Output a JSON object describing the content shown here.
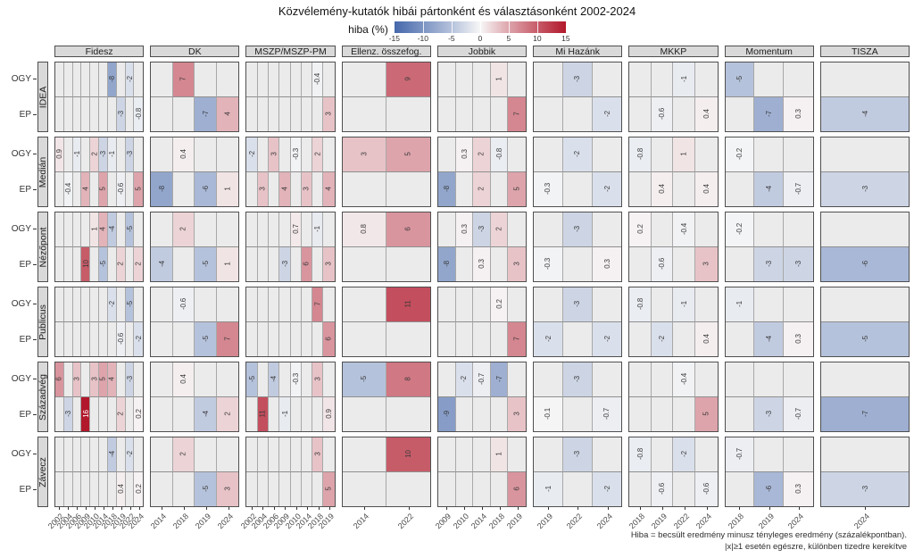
{
  "chart_data": {
    "type": "heatmap",
    "title": "Közvélemény-kutatók hibái pártonként és választásonként 2002-2024",
    "legend": {
      "label": "hiba (%)",
      "min": -15,
      "max": 15,
      "ticks": [
        -15,
        -10,
        -5,
        0,
        5,
        10,
        15
      ]
    },
    "row_groups": [
      "IDEA",
      "Medián",
      "Nézőpont",
      "Publicus",
      "Századvég",
      "Závecz"
    ],
    "row_types": [
      "OGY",
      "EP"
    ],
    "col_groups": [
      {
        "party": "Fidesz",
        "years": [
          "2002",
          "2004",
          "2006",
          "2009",
          "2010",
          "2014",
          "2018",
          "2019",
          "2022",
          "2024"
        ]
      },
      {
        "party": "DK",
        "years": [
          "2014",
          "2018",
          "2019",
          "2024"
        ]
      },
      {
        "party": "MSZP/MSZP-PM",
        "years": [
          "2002",
          "2004",
          "2006",
          "2009",
          "2010",
          "2014",
          "2018",
          "2019"
        ]
      },
      {
        "party": "Ellenz. összefog.",
        "years": [
          "2014",
          "2022"
        ]
      },
      {
        "party": "Jobbik",
        "years": [
          "2009",
          "2010",
          "2014",
          "2018",
          "2019"
        ]
      },
      {
        "party": "Mi Hazánk",
        "years": [
          "2019",
          "2022",
          "2024"
        ]
      },
      {
        "party": "MKKP",
        "years": [
          "2018",
          "2019",
          "2022",
          "2024"
        ]
      },
      {
        "party": "Momentum",
        "years": [
          "2018",
          "2019",
          "2024"
        ]
      },
      {
        "party": "TISZA",
        "years": [
          "2024"
        ]
      }
    ],
    "values": {
      "IDEA": {
        "Fidesz": {
          "OGY": {
            "2018": "-8",
            "2022": "-2"
          },
          "EP": {
            "2019": "-3",
            "2024": "-0.8"
          }
        },
        "DK": {
          "OGY": {
            "2018": "7"
          },
          "EP": {
            "2019": "-7",
            "2024": "4"
          }
        },
        "MSZP/MSZP-PM": {
          "OGY": {
            "2018": "-0.4"
          },
          "EP": {
            "2019": "3"
          }
        },
        "Ellenz. összefog.": {
          "OGY": {
            "2022": "9"
          },
          "EP": {}
        },
        "Jobbik": {
          "OGY": {
            "2018": "1"
          },
          "EP": {
            "2019": "7"
          }
        },
        "Mi Hazánk": {
          "OGY": {
            "2022": "-3"
          },
          "EP": {
            "2024": "-2"
          }
        },
        "MKKP": {
          "OGY": {
            "2022": "-1"
          },
          "EP": {
            "2019": "-0.6",
            "2024": "0.4"
          }
        },
        "Momentum": {
          "OGY": {
            "2018": "-5"
          },
          "EP": {
            "2019": "-7",
            "2024": "0.3"
          }
        },
        "TISZA": {
          "OGY": {},
          "EP": {
            "2024": "-4"
          }
        }
      },
      "Medián": {
        "Fidesz": {
          "OGY": {
            "2002": "0.9",
            "2006": "-1",
            "2010": "2",
            "2014": "-3",
            "2018": "-1",
            "2022": "-3"
          },
          "EP": {
            "2004": "-0.4",
            "2009": "4",
            "2014": "5",
            "2019": "-0.6",
            "2024": "5"
          }
        },
        "DK": {
          "OGY": {
            "2018": "0.4"
          },
          "EP": {
            "2014": "-8",
            "2019": "-6",
            "2024": "1"
          }
        },
        "MSZP/MSZP-PM": {
          "OGY": {
            "2002": "-2",
            "2006": "3",
            "2010": "-0.3",
            "2018": "2"
          },
          "EP": {
            "2004": "3",
            "2009": "4",
            "2014": "3",
            "2019": "4"
          }
        },
        "Ellenz. összefog.": {
          "OGY": {
            "2014": "3",
            "2022": "5"
          },
          "EP": {}
        },
        "Jobbik": {
          "OGY": {
            "2010": "0.3",
            "2014": "2",
            "2018": "-0.8"
          },
          "EP": {
            "2009": "-8",
            "2014": "2",
            "2019": "5"
          }
        },
        "Mi Hazánk": {
          "OGY": {
            "2022": "-2"
          },
          "EP": {
            "2019": "-0.3",
            "2024": "-2"
          }
        },
        "MKKP": {
          "OGY": {
            "2018": "-0.8",
            "2022": "1"
          },
          "EP": {
            "2019": "0.4",
            "2024": "0.4"
          }
        },
        "Momentum": {
          "OGY": {
            "2018": "-0.2"
          },
          "EP": {
            "2019": "-4",
            "2024": "-0.7"
          }
        },
        "TISZA": {
          "OGY": {},
          "EP": {
            "2024": "-3"
          }
        }
      },
      "Nézőpont": {
        "Fidesz": {
          "OGY": {
            "2010": "1",
            "2014": "4",
            "2018": "-4",
            "2022": "-5"
          },
          "EP": {
            "2009": "10",
            "2014": "-5",
            "2019": "2",
            "2024": "2"
          }
        },
        "DK": {
          "OGY": {
            "2018": "2"
          },
          "EP": {
            "2014": "-4",
            "2019": "-5",
            "2024": "1"
          }
        },
        "MSZP/MSZP-PM": {
          "OGY": {
            "2010": "0.7",
            "2018": "-1"
          },
          "EP": {
            "2009": "-3",
            "2014": "6",
            "2019": "3"
          }
        },
        "Ellenz. összefog.": {
          "OGY": {
            "2014": "0.8",
            "2022": "6"
          },
          "EP": {}
        },
        "Jobbik": {
          "OGY": {
            "2010": "0.3",
            "2014": "-3",
            "2018": "2"
          },
          "EP": {
            "2009": "-8",
            "2014": "0.3",
            "2019": "3"
          }
        },
        "Mi Hazánk": {
          "OGY": {
            "2022": "-3"
          },
          "EP": {
            "2019": "-0.3",
            "2024": "0.3"
          }
        },
        "MKKP": {
          "OGY": {
            "2018": "0.2",
            "2022": "-0.4"
          },
          "EP": {
            "2019": "-0.6",
            "2024": "3"
          }
        },
        "Momentum": {
          "OGY": {
            "2018": "-0.2"
          },
          "EP": {
            "2019": "-3",
            "2024": "-3"
          }
        },
        "TISZA": {
          "OGY": {},
          "EP": {
            "2024": "-6"
          }
        }
      },
      "Publicus": {
        "Fidesz": {
          "OGY": {
            "2018": "-2",
            "2022": "-5"
          },
          "EP": {
            "2019": "-0.6",
            "2024": "-2"
          }
        },
        "DK": {
          "OGY": {
            "2018": "-0.6"
          },
          "EP": {
            "2019": "-5",
            "2024": "7"
          }
        },
        "MSZP/MSZP-PM": {
          "OGY": {
            "2018": "7"
          },
          "EP": {
            "2019": "6"
          }
        },
        "Ellenz. összefog.": {
          "OGY": {
            "2022": "11"
          },
          "EP": {}
        },
        "Jobbik": {
          "OGY": {
            "2018": "0.2"
          },
          "EP": {
            "2019": "7"
          }
        },
        "Mi Hazánk": {
          "OGY": {
            "2022": "-3"
          },
          "EP": {
            "2019": "-2",
            "2024": "-2"
          }
        },
        "MKKP": {
          "OGY": {
            "2018": "-0.8",
            "2022": "-1"
          },
          "EP": {
            "2019": "-2",
            "2024": "0.4"
          }
        },
        "Momentum": {
          "OGY": {
            "2018": "-1"
          },
          "EP": {
            "2019": "-4",
            "2024": "0.3"
          }
        },
        "TISZA": {
          "OGY": {},
          "EP": {
            "2024": "-5"
          }
        }
      },
      "Századvég": {
        "Fidesz": {
          "OGY": {
            "2002": "6",
            "2006": "3",
            "2010": "3",
            "2014": "5",
            "2018": "4",
            "2022": "-3"
          },
          "EP": {
            "2004": "-3",
            "2009": "16",
            "2019": "2",
            "2024": "0.2"
          }
        },
        "DK": {
          "OGY": {
            "2018": "0.4"
          },
          "EP": {
            "2019": "-4",
            "2024": "2"
          }
        },
        "MSZP/MSZP-PM": {
          "OGY": {
            "2002": "-5",
            "2006": "-4",
            "2010": "-0.3",
            "2018": "3"
          },
          "EP": {
            "2004": "11",
            "2009": "-1",
            "2019": "0.9"
          }
        },
        "Ellenz. összefog.": {
          "OGY": {
            "2014": "-5",
            "2022": "8"
          },
          "EP": {}
        },
        "Jobbik": {
          "OGY": {
            "2010": "-2",
            "2014": "-0.7",
            "2018": "-7"
          },
          "EP": {
            "2009": "-9",
            "2019": "3"
          }
        },
        "Mi Hazánk": {
          "OGY": {
            "2022": "-3"
          },
          "EP": {
            "2019": "-0.1",
            "2024": "-0.7"
          }
        },
        "MKKP": {
          "OGY": {
            "2022": "-0.4"
          },
          "EP": {
            "2024": "5"
          }
        },
        "Momentum": {
          "OGY": {},
          "EP": {
            "2019": "-3",
            "2024": "-0.7"
          }
        },
        "TISZA": {
          "OGY": {},
          "EP": {
            "2024": "-7"
          }
        }
      },
      "Závecz": {
        "Fidesz": {
          "OGY": {
            "2018": "-4",
            "2022": "-2"
          },
          "EP": {
            "2019": "0.4",
            "2024": "0.2"
          }
        },
        "DK": {
          "OGY": {
            "2018": "2"
          },
          "EP": {
            "2019": "-5",
            "2024": "3"
          }
        },
        "MSZP/MSZP-PM": {
          "OGY": {
            "2018": "3"
          },
          "EP": {
            "2019": "5"
          }
        },
        "Ellenz. összefog.": {
          "OGY": {
            "2022": "10"
          },
          "EP": {}
        },
        "Jobbik": {
          "OGY": {
            "2018": "1"
          },
          "EP": {
            "2019": "6"
          }
        },
        "Mi Hazánk": {
          "OGY": {
            "2022": "-3"
          },
          "EP": {
            "2019": "-1",
            "2024": "-2"
          }
        },
        "MKKP": {
          "OGY": {
            "2018": "-0.8",
            "2022": "-2"
          },
          "EP": {
            "2019": "-0.6",
            "2024": "-0.6"
          }
        },
        "Momentum": {
          "OGY": {
            "2018": "-0.7"
          },
          "EP": {
            "2019": "-6",
            "2024": "0.3"
          }
        },
        "TISZA": {
          "OGY": {},
          "EP": {
            "2024": "-3"
          }
        }
      }
    },
    "footnote_lines": [
      "Hiba = becsült eredmény minusz tényleges eredmény (százalékpontban).",
      "|x|≥1 esetén egészre, különben tizedre kerekítve"
    ],
    "colors": {
      "neg_end": "#4668ac",
      "mid": "#f7f7f7",
      "pos_end": "#b2182b",
      "na_cell": "#ebebeb",
      "header_bg": "#d9d9d9",
      "panel_border": "#4f4f4f"
    }
  }
}
